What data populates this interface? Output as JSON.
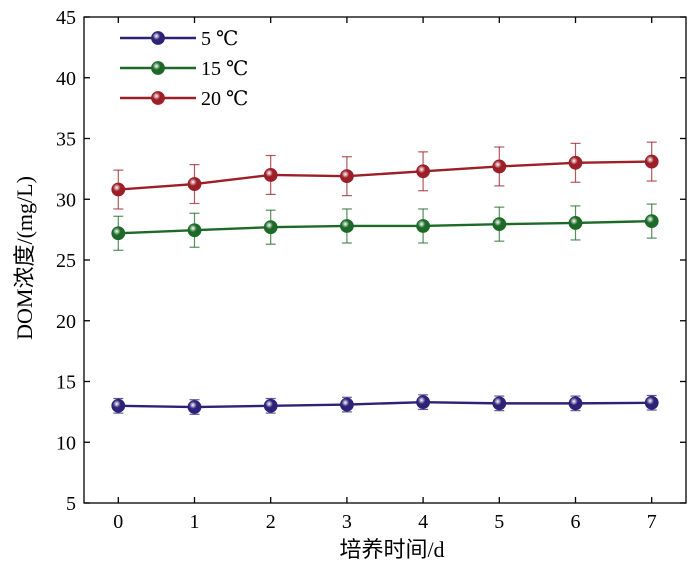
{
  "chart_data": {
    "type": "line",
    "title": "",
    "xlabel": "培养时间/d",
    "ylabel": "DOM浓度/(mg/L)",
    "x": [
      0,
      1,
      2,
      3,
      4,
      5,
      6,
      7
    ],
    "x_ticks": [
      "0",
      "1",
      "2",
      "3",
      "4",
      "5",
      "6",
      "7"
    ],
    "xlim": [
      -0.45,
      7.45
    ],
    "ylim": [
      5,
      45
    ],
    "y_ticks": [
      "5",
      "10",
      "15",
      "20",
      "25",
      "30",
      "35",
      "40",
      "45"
    ],
    "grid": false,
    "legend_position": "top-left",
    "series": [
      {
        "name": "5 ℃",
        "color": "#2e2278",
        "values": [
          13.0,
          12.9,
          13.0,
          13.1,
          13.3,
          13.2,
          13.2,
          13.25
        ],
        "errors": [
          0.6,
          0.6,
          0.6,
          0.6,
          0.6,
          0.6,
          0.6,
          0.6
        ]
      },
      {
        "name": "15 ℃",
        "color": "#1d6a28",
        "values": [
          27.2,
          27.45,
          27.7,
          27.8,
          27.8,
          27.95,
          28.05,
          28.2
        ],
        "errors": [
          1.4,
          1.4,
          1.4,
          1.4,
          1.4,
          1.4,
          1.4,
          1.4
        ]
      },
      {
        "name": "20 ℃",
        "color": "#9c1f28",
        "values": [
          30.8,
          31.25,
          32.0,
          31.9,
          32.3,
          32.7,
          33.0,
          33.1
        ],
        "errors": [
          1.6,
          1.6,
          1.6,
          1.6,
          1.6,
          1.6,
          1.6,
          1.6
        ]
      }
    ]
  }
}
